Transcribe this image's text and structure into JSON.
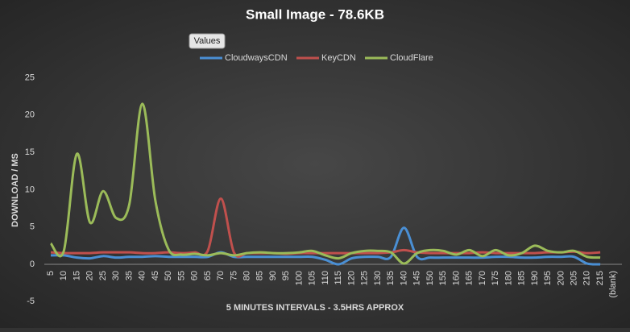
{
  "chart_data": {
    "type": "line",
    "title": "Small Image - 78.6KB",
    "field_button": "Values",
    "x_label": "5 MINUTES INTERVALS - 3.5HRS APPROX",
    "y_label": "DOWNLOAD / MS",
    "categories": [
      "5",
      "10",
      "15",
      "20",
      "25",
      "30",
      "35",
      "40",
      "45",
      "50",
      "55",
      "60",
      "65",
      "70",
      "75",
      "80",
      "85",
      "90",
      "95",
      "100",
      "105",
      "110",
      "115",
      "120",
      "125",
      "130",
      "135",
      "140",
      "145",
      "150",
      "155",
      "160",
      "165",
      "170",
      "175",
      "180",
      "185",
      "190",
      "195",
      "200",
      "205",
      "210",
      "215",
      "(blank)"
    ],
    "series": [
      {
        "name": "CloudwaysCDN",
        "color": "#4a8fd4",
        "values": [
          1.2,
          1.2,
          0.9,
          0.8,
          1.1,
          0.9,
          1,
          1,
          1.1,
          1,
          1,
          1,
          1,
          1.6,
          1,
          1,
          1,
          1,
          1,
          1,
          1,
          0.6,
          0,
          0.8,
          1,
          1,
          1,
          4.9,
          1,
          0.9,
          0.9,
          0.9,
          0.9,
          0.9,
          1,
          1,
          0.9,
          0.9,
          1,
          1,
          1,
          0.1,
          0,
          null
        ]
      },
      {
        "name": "KeyCDN",
        "color": "#c0504d",
        "values": [
          1.6,
          1.5,
          1.5,
          1.5,
          1.6,
          1.6,
          1.6,
          1.5,
          1.5,
          1.6,
          1.5,
          1.6,
          1.8,
          8.8,
          1.6,
          1.5,
          1.5,
          1.5,
          1.4,
          1.5,
          1.5,
          1.5,
          1.5,
          1.5,
          1.5,
          1.5,
          1.6,
          1.9,
          1.6,
          1.5,
          1.5,
          1.5,
          1.5,
          1.6,
          1.5,
          1.5,
          1.5,
          1.5,
          1.6,
          1.6,
          1.7,
          1.5,
          1.6,
          null
        ]
      },
      {
        "name": "CloudFlare",
        "color": "#9bbb59",
        "values": [
          2.8,
          1.8,
          14.8,
          5.6,
          9.8,
          6.2,
          8,
          21.5,
          8.5,
          2,
          1.3,
          1.4,
          1.2,
          1.5,
          1.2,
          1.5,
          1.6,
          1.5,
          1.5,
          1.6,
          1.8,
          1.2,
          0.8,
          1.5,
          1.8,
          1.8,
          1.6,
          0.1,
          1.5,
          1.9,
          1.8,
          1.3,
          1.9,
          1.1,
          1.9,
          1.2,
          1.5,
          2.5,
          1.8,
          1.6,
          1.8,
          1,
          0.9,
          null
        ]
      }
    ],
    "ylim": [
      -5,
      25
    ],
    "yticks": [
      -5,
      0,
      5,
      10,
      15,
      20,
      25
    ],
    "grid": false
  }
}
